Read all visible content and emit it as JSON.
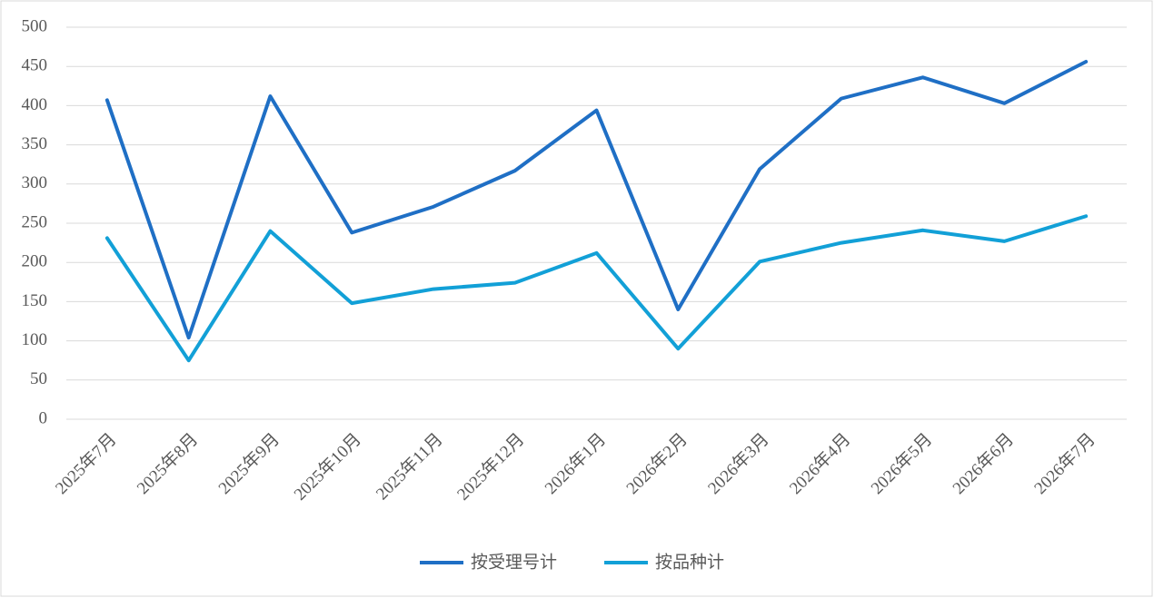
{
  "chart_data": {
    "type": "line",
    "categories": [
      "2025年7月",
      "2025年8月",
      "2025年9月",
      "2025年10月",
      "2025年11月",
      "2025年12月",
      "2026年1月",
      "2026年2月",
      "2026年3月",
      "2026年4月",
      "2026年5月",
      "2026年6月",
      "2026年7月"
    ],
    "series": [
      {
        "name": "按受理号计",
        "color": "#1f6fc5",
        "values": [
          407,
          104,
          412,
          238,
          271,
          317,
          394,
          140,
          319,
          409,
          436,
          403,
          456
        ]
      },
      {
        "name": "按品种计",
        "color": "#12a0d7",
        "values": [
          231,
          75,
          240,
          148,
          166,
          174,
          212,
          90,
          201,
          225,
          241,
          227,
          259
        ]
      }
    ],
    "ylim": [
      0,
      500
    ],
    "yticks": [
      0,
      50,
      100,
      150,
      200,
      250,
      300,
      350,
      400,
      450,
      500
    ],
    "grid": true,
    "legend": "bottom"
  }
}
